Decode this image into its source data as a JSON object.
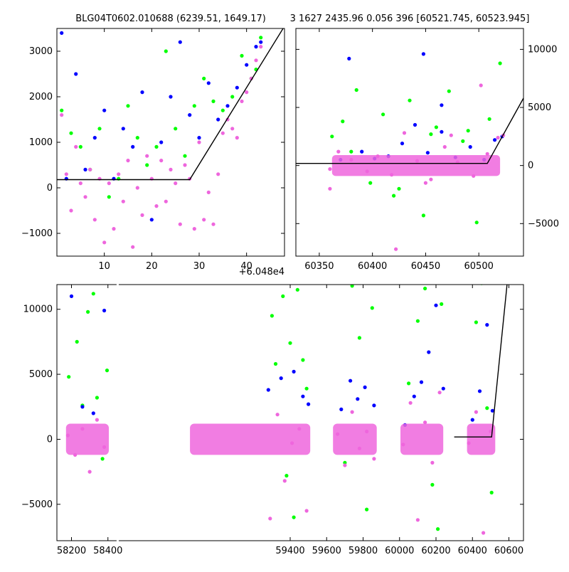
{
  "figure": {
    "title_left": "BLG04T0602.010688 (6239.51, 1649.17)",
    "title_right": "3 1627 2435.96 0.056 396 [60521.745, 60523.945]"
  },
  "colors": {
    "green": "#00ff00",
    "blue": "#0000ff",
    "magenta": "#ee66dd",
    "model_line": "#000000",
    "axes": "#000000"
  },
  "chart_data": [
    {
      "type": "scatter",
      "panel": "top-left zoom",
      "x_offset_label": "+6.048e4",
      "xlim": [
        0,
        48
      ],
      "ylim": [
        -1500,
        3500
      ],
      "xticks": [
        10,
        20,
        30,
        40
      ],
      "yticks": [
        -1000,
        0,
        1000,
        2000,
        3000
      ],
      "ytick_labels": [
        "−1000",
        "0",
        "1000",
        "2000",
        "3000"
      ],
      "series": [
        {
          "color_key": "magenta",
          "x": [
            1,
            2,
            3,
            4,
            5,
            6,
            7,
            8,
            9,
            10,
            11,
            12,
            13,
            14,
            15,
            16,
            17,
            18,
            19,
            20,
            21,
            22,
            23,
            24,
            25,
            26,
            27,
            28,
            29,
            30,
            31,
            32,
            33,
            34,
            35,
            36,
            37,
            38,
            39,
            40,
            41,
            42,
            43
          ],
          "y": [
            1600,
            300,
            -500,
            900,
            100,
            -200,
            400,
            -700,
            200,
            -1200,
            100,
            -900,
            300,
            -300,
            600,
            -1300,
            0,
            -600,
            700,
            200,
            -400,
            600,
            -300,
            400,
            100,
            -800,
            500,
            200,
            -900,
            1000,
            -700,
            -100,
            -800,
            300,
            1200,
            1500,
            1300,
            1100,
            1900,
            2100,
            2400,
            2800,
            3100
          ]
        },
        {
          "color_key": "green",
          "x": [
            1,
            3,
            5,
            7,
            9,
            11,
            13,
            15,
            17,
            19,
            21,
            23,
            25,
            27,
            29,
            31,
            33,
            35,
            37,
            39,
            41,
            42,
            43
          ],
          "y": [
            1700,
            1200,
            900,
            400,
            1300,
            -200,
            200,
            1800,
            1100,
            500,
            900,
            3000,
            1300,
            700,
            1800,
            2400,
            1900,
            1700,
            2000,
            2900,
            2400,
            2600,
            3300
          ]
        },
        {
          "color_key": "blue",
          "x": [
            1,
            2,
            4,
            6,
            8,
            10,
            12,
            14,
            16,
            18,
            20,
            22,
            24,
            26,
            28,
            30,
            32,
            34,
            36,
            38,
            40,
            42,
            43
          ],
          "y": [
            3400,
            200,
            2500,
            400,
            1100,
            1700,
            200,
            1300,
            900,
            2100,
            -700,
            1000,
            2000,
            3200,
            1600,
            1100,
            2300,
            1500,
            1800,
            2200,
            2700,
            3100,
            3200
          ]
        }
      ],
      "model": {
        "x": [
          0,
          28,
          48
        ],
        "y": [
          180,
          180,
          3550
        ]
      }
    },
    {
      "type": "scatter",
      "panel": "top-right zoom",
      "xlim": [
        60328,
        60542
      ],
      "ylim": [
        -7800,
        11800
      ],
      "xticks": [
        60350,
        60400,
        60450,
        60500
      ],
      "yticks": [
        -5000,
        0,
        5000,
        10000
      ],
      "ytick_labels": [
        "−5000",
        "0",
        "5000",
        "10000"
      ],
      "series": [
        {
          "color_key": "green",
          "x": [
            60362,
            60372,
            60385,
            60398,
            60410,
            60420,
            60435,
            60448,
            60460,
            60472,
            60485,
            60498,
            60510,
            60520,
            60380,
            60425,
            60455,
            60490
          ],
          "y": [
            2500,
            3800,
            6500,
            -1500,
            4400,
            -2600,
            5600,
            -4300,
            3300,
            6400,
            2100,
            -4900,
            4000,
            8800,
            1200,
            -2000,
            2700,
            3000
          ]
        },
        {
          "color_key": "blue",
          "x": [
            60370,
            60378,
            60390,
            60402,
            60415,
            60428,
            60440,
            60452,
            60465,
            60478,
            60492,
            60505,
            60515,
            60522,
            60448,
            60465
          ],
          "y": [
            500,
            9200,
            1200,
            600,
            800,
            1900,
            3500,
            1100,
            2900,
            700,
            1600,
            500,
            2200,
            2500,
            9600,
            5200
          ]
        },
        {
          "color_key": "magenta",
          "x": [
            60360,
            60368,
            60380,
            60395,
            60405,
            60418,
            60430,
            60442,
            60455,
            60468,
            60480,
            60495,
            60508,
            60518,
            60523,
            60360,
            60422,
            60450,
            60474,
            60502
          ],
          "y": [
            -2000,
            1200,
            500,
            -500,
            800,
            -800,
            2800,
            400,
            -1200,
            1600,
            300,
            -900,
            1000,
            2400,
            2600,
            -300,
            -7200,
            -1500,
            2600,
            6900
          ]
        }
      ],
      "model": {
        "x": [
          60328,
          60508,
          60542
        ],
        "y": [
          180,
          180,
          5800
        ]
      }
    },
    {
      "type": "scatter",
      "panel": "bottom full light curve",
      "xlim": [
        58120,
        60680
      ],
      "ylim": [
        -7800,
        11900
      ],
      "xticks": [
        58200,
        58400,
        59400,
        59600,
        59800,
        60000,
        60200,
        60400,
        60600
      ],
      "yticks": [
        -5000,
        0,
        5000,
        10000
      ],
      "ytick_labels": [
        "−5000",
        "0",
        "5000",
        "10000"
      ],
      "seasons": [
        [
          58170,
          58405
        ],
        [
          58850,
          59510
        ],
        [
          59635,
          59875
        ],
        [
          60005,
          60240
        ],
        [
          60370,
          60525
        ]
      ],
      "x_break": {
        "start": 58430,
        "end": 58800
      },
      "series": [
        {
          "color_key": "green",
          "x": [
            58185,
            58230,
            58260,
            58290,
            58320,
            58340,
            58370,
            58395,
            59300,
            59320,
            59360,
            59400,
            59440,
            59470,
            59490,
            59380,
            59420,
            59700,
            59740,
            59780,
            59820,
            59850,
            60050,
            60100,
            60140,
            60180,
            60210,
            60230,
            60420,
            60450,
            60480,
            60505
          ],
          "y": [
            4800,
            7500,
            2600,
            9800,
            11200,
            3200,
            -1500,
            5300,
            9500,
            5800,
            11000,
            7400,
            11500,
            6100,
            3900,
            -2800,
            -6000,
            -1800,
            11800,
            7800,
            -5400,
            10100,
            4300,
            9100,
            11600,
            -3500,
            -6900,
            10400,
            9000,
            12000,
            2400,
            -4100
          ]
        },
        {
          "color_key": "blue",
          "x": [
            58200,
            58260,
            58320,
            58380,
            59280,
            59350,
            59420,
            59470,
            59500,
            59680,
            59730,
            59770,
            59810,
            59860,
            60030,
            60080,
            60120,
            60160,
            60200,
            60240,
            60400,
            60440,
            60480,
            60510
          ],
          "y": [
            11000,
            2500,
            2000,
            9900,
            3800,
            4700,
            5200,
            3300,
            2700,
            2300,
            4500,
            3100,
            4000,
            2600,
            1100,
            3300,
            4400,
            6700,
            10300,
            3900,
            1500,
            3700,
            8800,
            2200
          ]
        },
        {
          "color_key": "magenta",
          "x": [
            58180,
            58220,
            58260,
            58300,
            58340,
            58380,
            59290,
            59330,
            59370,
            59410,
            59450,
            59490,
            59660,
            59700,
            59740,
            59780,
            59820,
            59860,
            60020,
            60060,
            60100,
            60140,
            60180,
            60220,
            60380,
            60420,
            60460,
            60500
          ],
          "y": [
            300,
            -1200,
            800,
            -2500,
            1500,
            -600,
            -6100,
            1900,
            -3200,
            -300,
            800,
            -5500,
            400,
            -2000,
            2100,
            -700,
            600,
            -1500,
            -400,
            2800,
            -6200,
            1300,
            -1800,
            3600,
            -300,
            2100,
            -7200,
            600
          ]
        }
      ],
      "model": {
        "x": [
          60300,
          60505,
          60590
        ],
        "y": [
          180,
          180,
          11900
        ]
      }
    }
  ]
}
